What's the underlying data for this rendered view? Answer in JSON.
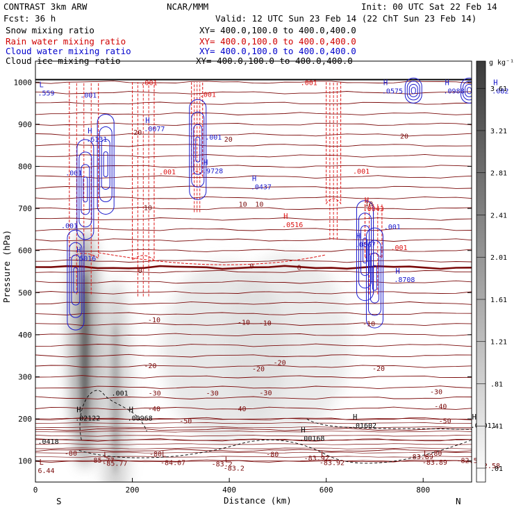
{
  "header": {
    "left1": "CONTRAST  3km ARW",
    "center1": "NCAR/MMM",
    "right1": "Init: 00 UTC Sat 22 Feb 14",
    "left2": "Fcst:    36 h",
    "right2": "Valid: 12 UTC Sun 23 Feb 14 (22 ChT Sun 23 Feb 14)"
  },
  "fields": [
    {
      "name": "Snow mixing ratio",
      "xy": "XY= 400.0,100.0 to 400.0,400.0",
      "color": "#000000"
    },
    {
      "name": "Rain water mixing ratio",
      "xy": "XY= 400.0,100.0 to 400.0,400.0",
      "color": "#d00000"
    },
    {
      "name": "Cloud water mixing ratio",
      "xy": "XY= 400.0,100.0 to 400.0,400.0",
      "color": "#0000cc"
    },
    {
      "name": "Cloud ice mixing ratio",
      "xy": "XY= 400.0,100.0 to 400.0,400.0",
      "color": "#000000"
    }
  ],
  "colors": {
    "temperature": "#7a0a0a",
    "rain": "#dd1111",
    "cloud_water": "#1a1acc",
    "ice": "#000000"
  },
  "chart_data": {
    "type": "heatmap",
    "xlabel": "Distance (km)",
    "ylabel": "Pressure (hPa)",
    "xlim": [
      0,
      900
    ],
    "ylim": [
      1050,
      50
    ],
    "x_ticks": [
      "0",
      "200",
      "400",
      "600",
      "800"
    ],
    "y_ticks": [
      "100",
      "200",
      "300",
      "400",
      "500",
      "600",
      "700",
      "800",
      "900",
      "1000"
    ],
    "x_ends": [
      "S",
      "N"
    ],
    "colorbar": {
      "unit": "g kg⁻¹",
      "ticks": [
        ".01",
        ".41",
        ".81",
        "1.21",
        "1.61",
        "2.01",
        "2.41",
        "2.81",
        "3.21",
        "3.61"
      ],
      "range": [
        0.01,
        4.0
      ]
    },
    "temperature_contours": [
      {
        "value": -80,
        "p": 125
      },
      {
        "value": -50,
        "p": 196
      },
      {
        "value": -40,
        "p": 225
      },
      {
        "value": -30,
        "p": 262
      },
      {
        "value": -20,
        "p": 327
      },
      {
        "value": -10,
        "p": 433
      },
      {
        "value": 0,
        "p": 560
      },
      {
        "value": 10,
        "p": 705
      },
      {
        "value": 20,
        "p": 862
      }
    ],
    "temperature_labels": [
      {
        "text": "-85.77",
        "x": 137,
        "p": 103
      },
      {
        "text": "-83.2",
        "x": 385,
        "p": 94
      },
      {
        "text": "-83.92",
        "x": 580,
        "p": 108
      },
      {
        "text": "-83.89",
        "x": 795,
        "p": 111
      },
      {
        "text": "-82.58",
        "x": 895,
        "p": 102
      },
      {
        "text": "-80",
        "x": 73,
        "p": 119
      },
      {
        "text": "-80",
        "x": 248,
        "p": 118
      },
      {
        "text": "-80",
        "x": 489,
        "p": 117
      },
      {
        "text": "-80",
        "x": 826,
        "p": 119
      },
      {
        "text": "-50",
        "x": 310,
        "p": 196
      },
      {
        "text": "-50",
        "x": 845,
        "p": 196
      },
      {
        "text": "-40",
        "x": 245,
        "p": 225
      },
      {
        "text": "-40",
        "x": 422,
        "p": 225
      },
      {
        "text": "-40",
        "x": 836,
        "p": 231
      },
      {
        "text": "-30",
        "x": 246,
        "p": 262
      },
      {
        "text": "-30",
        "x": 365,
        "p": 262
      },
      {
        "text": "-30",
        "x": 475,
        "p": 263
      },
      {
        "text": "-30",
        "x": 827,
        "p": 265
      },
      {
        "text": "-20",
        "x": 237,
        "p": 327
      },
      {
        "text": "-20",
        "x": 460,
        "p": 320
      },
      {
        "text": "-20",
        "x": 504,
        "p": 335
      },
      {
        "text": "-20",
        "x": 708,
        "p": 321
      },
      {
        "text": "-10",
        "x": 245,
        "p": 436
      },
      {
        "text": "-10",
        "x": 430,
        "p": 430
      },
      {
        "text": "-10",
        "x": 474,
        "p": 429
      },
      {
        "text": "-10",
        "x": 688,
        "p": 427
      },
      {
        "text": "0",
        "x": 216,
        "p": 553
      },
      {
        "text": "0",
        "x": 446,
        "p": 564
      },
      {
        "text": "0",
        "x": 544,
        "p": 561
      },
      {
        "text": "10",
        "x": 232,
        "p": 703
      },
      {
        "text": "10",
        "x": 428,
        "p": 711
      },
      {
        "text": "10",
        "x": 462,
        "p": 711
      },
      {
        "text": "10",
        "x": 688,
        "p": 712
      },
      {
        "text": "20",
        "x": 211,
        "p": 882
      },
      {
        "text": "20",
        "x": 398,
        "p": 865
      },
      {
        "text": "20",
        "x": 761,
        "p": 873
      }
    ],
    "extrema": [
      {
        "kind": "L",
        "label": "6.44",
        "x": 5,
        "p": 78,
        "color": "#7a0a0a"
      },
      {
        "kind": "L",
        "label": "-85.77",
        "x": 138,
        "p": 95,
        "color": "#7a0a0a"
      },
      {
        "kind": "L",
        "label": "-84.07",
        "x": 258,
        "p": 97,
        "color": "#7a0a0a"
      },
      {
        "kind": "L",
        "label": "-83.2",
        "x": 388,
        "p": 84,
        "color": "#7a0a0a"
      },
      {
        "kind": "L",
        "label": "-83.92",
        "x": 586,
        "p": 97,
        "color": "#7a0a0a"
      },
      {
        "kind": "L",
        "label": "-83.89",
        "x": 798,
        "p": 98,
        "color": "#7a0a0a"
      },
      {
        "kind": "L",
        "label": "-82.58",
        "x": 907,
        "p": 90,
        "color": "#7a0a0a"
      },
      {
        "kind": "",
        "label": ".0418",
        "x": 5,
        "p": 147,
        "color": "#000000"
      },
      {
        "kind": "H",
        "label": ".00168",
        "x": 545,
        "p": 155,
        "color": "#000000"
      },
      {
        "kind": "H",
        "label": ".01602",
        "x": 652,
        "p": 185,
        "color": "#000000"
      },
      {
        "kind": "H",
        "label": ".01011",
        "x": 898,
        "p": 185,
        "color": "#000000"
      },
      {
        "kind": "H",
        "label": ".02122",
        "x": 82,
        "p": 203,
        "color": "#000000"
      },
      {
        "kind": "H",
        "label": ".00968",
        "x": 190,
        "p": 203,
        "color": "#000000"
      },
      {
        "kind": "",
        "label": ".001",
        "x": 157,
        "p": 262,
        "color": "#000000"
      },
      {
        "kind": "H",
        "label": ".5016",
        "x": 82,
        "p": 582,
        "color": "#1a1acc"
      },
      {
        "kind": "",
        "label": ".001",
        "x": 53,
        "p": 660,
        "color": "#1a1acc"
      },
      {
        "kind": "H",
        "label": ".0867",
        "x": 659,
        "p": 615,
        "color": "#1a1acc"
      },
      {
        "kind": "",
        "label": ".001",
        "x": 733,
        "p": 608,
        "color": "#dd1111"
      },
      {
        "kind": "H",
        "label": ".8708",
        "x": 740,
        "p": 532,
        "color": "#1a1acc"
      },
      {
        "kind": "",
        "label": ".001",
        "x": 719,
        "p": 657,
        "color": "#1a1acc"
      },
      {
        "kind": "H",
        "label": ".0516",
        "x": 509,
        "p": 662,
        "color": "#dd1111"
      },
      {
        "kind": "H",
        "label": ".0043",
        "x": 676,
        "p": 700,
        "color": "#dd1111"
      },
      {
        "kind": "H",
        "label": ".0437",
        "x": 444,
        "p": 752,
        "color": "#1a1acc"
      },
      {
        "kind": "",
        "label": ".001",
        "x": 655,
        "p": 789,
        "color": "#dd1111"
      },
      {
        "kind": "",
        "label": ".001",
        "x": 255,
        "p": 788,
        "color": "#dd1111"
      },
      {
        "kind": "",
        "label": ".001",
        "x": 62,
        "p": 785,
        "color": "#1a1acc"
      },
      {
        "kind": "H",
        "label": ".9728",
        "x": 344,
        "p": 790,
        "color": "#1a1acc"
      },
      {
        "kind": "H",
        "label": ".0077",
        "x": 224,
        "p": 890,
        "color": "#1a1acc"
      },
      {
        "kind": "H",
        "label": ".6131",
        "x": 105,
        "p": 865,
        "color": "#1a1acc"
      },
      {
        "kind": "",
        "label": ".001",
        "x": 350,
        "p": 870,
        "color": "#1a1acc"
      },
      {
        "kind": "L",
        "label": ".559",
        "x": 5,
        "p": 975,
        "color": "#1a1acc"
      },
      {
        "kind": "",
        "label": ".001",
        "x": 92,
        "p": 970,
        "color": "#1a1acc"
      },
      {
        "kind": "",
        "label": ".001",
        "x": 338,
        "p": 972,
        "color": "#dd1111"
      },
      {
        "kind": "H",
        "label": ".0575",
        "x": 715,
        "p": 980,
        "color": "#1a1acc"
      },
      {
        "kind": "H",
        "label": ".0988",
        "x": 842,
        "p": 980,
        "color": "#1a1acc"
      },
      {
        "kind": "H",
        "label": ".082",
        "x": 942,
        "p": 980,
        "color": "#1a1acc"
      },
      {
        "kind": "",
        "label": ".001",
        "x": 217,
        "p": 1000,
        "color": "#dd1111"
      },
      {
        "kind": "",
        "label": ".001",
        "x": 547,
        "p": 1000,
        "color": "#dd1111"
      }
    ],
    "snow_cores": [
      {
        "x": 102,
        "p": 365,
        "max": 3.2
      },
      {
        "x": 165,
        "p": 248,
        "max": 1.6
      },
      {
        "x": 390,
        "p": 360,
        "max": 0.8
      },
      {
        "x": 520,
        "p": 380,
        "max": 0.7
      }
    ],
    "rain_regions": [
      {
        "x": [
          70,
          130
        ],
        "p": [
          595,
          1000
        ]
      },
      {
        "x": [
          200,
          245
        ],
        "p": [
          590,
          1000
        ]
      },
      {
        "x": [
          322,
          345
        ],
        "p": [
          790,
          1000
        ]
      },
      {
        "x": [
          600,
          630
        ],
        "p": [
          725,
          1000
        ]
      },
      {
        "x": [
          680,
          715
        ],
        "p": [
          595,
          710
        ]
      }
    ],
    "cloud_water_cores": [
      {
        "x": 83,
        "p": 530
      },
      {
        "x": 103,
        "p": 745
      },
      {
        "x": 145,
        "p": 805
      },
      {
        "x": 335,
        "p": 840
      },
      {
        "x": 680,
        "p": 600
      },
      {
        "x": 700,
        "p": 535
      },
      {
        "x": 780,
        "p": 980
      },
      {
        "x": 895,
        "p": 980
      }
    ]
  }
}
